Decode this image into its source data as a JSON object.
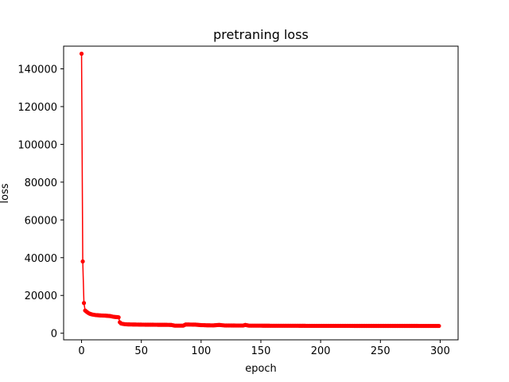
{
  "chart_data": {
    "type": "line",
    "title": "pretraning loss",
    "xlabel": "epoch",
    "ylabel": "loss",
    "xlim": [
      -15,
      315
    ],
    "ylim": [
      -3500,
      152000
    ],
    "x_ticks": [
      0,
      50,
      100,
      150,
      200,
      250,
      300
    ],
    "y_ticks": [
      0,
      20000,
      40000,
      60000,
      80000,
      100000,
      120000,
      140000
    ],
    "grid": false,
    "legend": "none",
    "series": [
      {
        "color": "#ff0000",
        "marker": "circle",
        "points": [
          [
            0,
            148000
          ],
          [
            1,
            38000
          ],
          [
            2,
            16000
          ],
          [
            3,
            12000
          ],
          [
            4,
            11500
          ],
          [
            5,
            11000
          ],
          [
            6,
            10600
          ],
          [
            7,
            10300
          ],
          [
            8,
            10100
          ],
          [
            9,
            9900
          ],
          [
            10,
            9800
          ],
          [
            12,
            9600
          ],
          [
            14,
            9500
          ],
          [
            16,
            9400
          ],
          [
            18,
            9350
          ],
          [
            20,
            9300
          ],
          [
            22,
            9200
          ],
          [
            24,
            9100
          ],
          [
            26,
            8800
          ],
          [
            28,
            8600
          ],
          [
            30,
            8500
          ],
          [
            31,
            8400
          ],
          [
            32,
            5800
          ],
          [
            33,
            5200
          ],
          [
            34,
            5000
          ],
          [
            36,
            4800
          ],
          [
            38,
            4700
          ],
          [
            40,
            4650
          ],
          [
            45,
            4600
          ],
          [
            50,
            4550
          ],
          [
            55,
            4500
          ],
          [
            60,
            4500
          ],
          [
            65,
            4450
          ],
          [
            70,
            4450
          ],
          [
            75,
            4400
          ],
          [
            78,
            4000
          ],
          [
            80,
            4000
          ],
          [
            85,
            4000
          ],
          [
            87,
            4600
          ],
          [
            90,
            4600
          ],
          [
            95,
            4550
          ],
          [
            100,
            4300
          ],
          [
            105,
            4200
          ],
          [
            110,
            4150
          ],
          [
            115,
            4400
          ],
          [
            120,
            4100
          ],
          [
            125,
            4100
          ],
          [
            130,
            4050
          ],
          [
            135,
            4050
          ],
          [
            137,
            4400
          ],
          [
            140,
            4000
          ],
          [
            150,
            4000
          ],
          [
            160,
            3950
          ],
          [
            170,
            3950
          ],
          [
            180,
            3950
          ],
          [
            190,
            3900
          ],
          [
            200,
            3900
          ],
          [
            210,
            3900
          ],
          [
            220,
            3900
          ],
          [
            230,
            3880
          ],
          [
            240,
            3880
          ],
          [
            250,
            3870
          ],
          [
            260,
            3870
          ],
          [
            270,
            3860
          ],
          [
            280,
            3860
          ],
          [
            290,
            3850
          ],
          [
            299,
            3850
          ]
        ]
      }
    ]
  }
}
